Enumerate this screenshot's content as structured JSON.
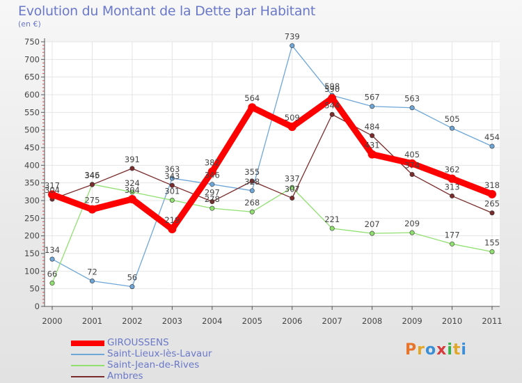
{
  "title": "Evolution du Montant de la Dette par Habitant",
  "subtitle": "(en €)",
  "logo": {
    "text": "Proxiti",
    "colors": [
      "#e8742c",
      "#e2a628",
      "#3a8fd6",
      "#d63a3a",
      "#3ab04a",
      "#e2a628",
      "#3a8fd6"
    ]
  },
  "chart_data": {
    "type": "line",
    "x": [
      "2000",
      "2001",
      "2002",
      "2003",
      "2004",
      "2005",
      "2006",
      "2007",
      "2008",
      "2009",
      "2010",
      "2011"
    ],
    "ylim": [
      0,
      750
    ],
    "yticks": [
      0,
      50,
      100,
      150,
      200,
      250,
      300,
      350,
      400,
      450,
      500,
      550,
      600,
      650,
      700,
      750
    ],
    "grid": true,
    "legend_position": "bottom-left",
    "series": [
      {
        "name": "GIROUSSENS",
        "color": "#ff0000",
        "values": [
          317,
          275,
          304,
          219,
          382,
          564,
          509,
          590,
          431,
          405,
          362,
          318
        ]
      },
      {
        "name": "Saint-Lieux-lès-Lavaur",
        "color": "#6ea6d8",
        "values": [
          134,
          72,
          56,
          363,
          346,
          328,
          739,
          598,
          567,
          563,
          505,
          454
        ]
      },
      {
        "name": "Saint-Jean-de-Rives",
        "color": "#90e070",
        "values": [
          66,
          346,
          324,
          301,
          278,
          268,
          337,
          221,
          207,
          209,
          177,
          155
        ]
      },
      {
        "name": "Ambres",
        "color": "#7a2b2b",
        "values": [
          304,
          345,
          391,
          343,
          297,
          355,
          307,
          544,
          484,
          374,
          313,
          265
        ]
      }
    ]
  }
}
